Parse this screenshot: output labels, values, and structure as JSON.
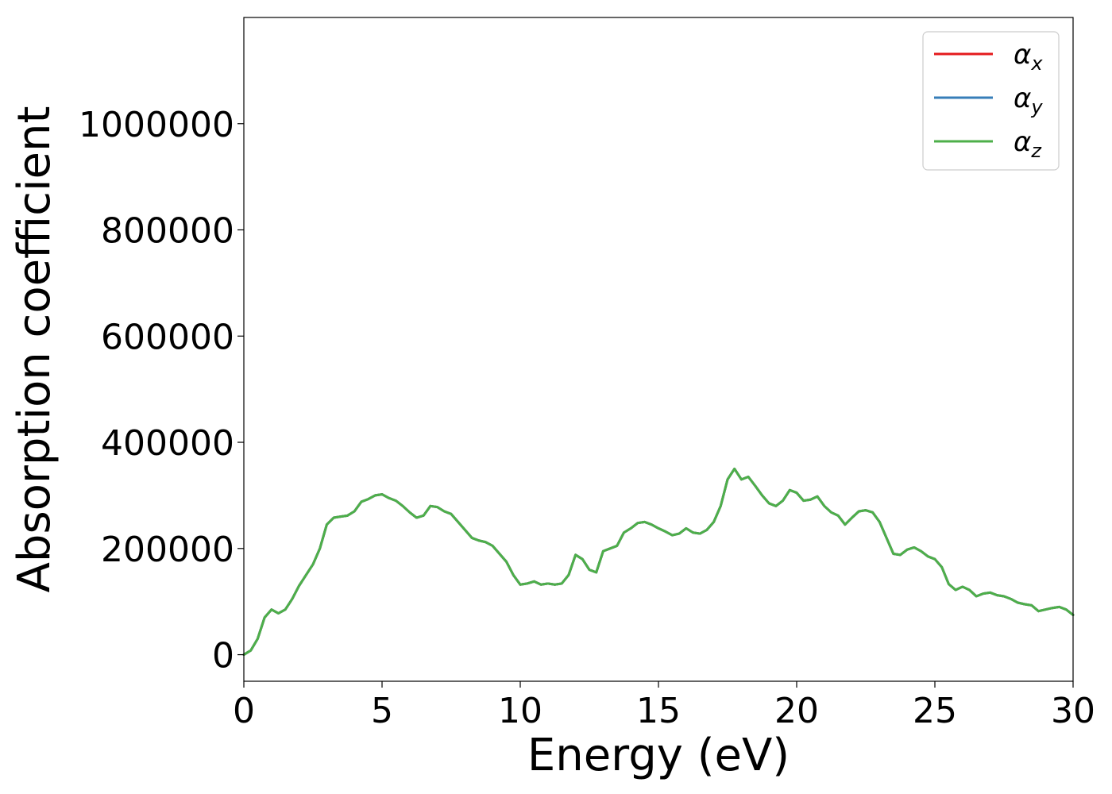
{
  "chart_data": {
    "type": "line",
    "title": "",
    "xlabel": "Energy (eV)",
    "ylabel": "Absorption coefficient",
    "xlim": [
      0,
      30
    ],
    "ylim": [
      -50000,
      1200000
    ],
    "xticks": [
      0,
      5,
      10,
      15,
      20,
      25,
      30
    ],
    "xtick_labels": [
      "0",
      "5",
      "10",
      "15",
      "20",
      "25",
      "30"
    ],
    "yticks": [
      0,
      200000,
      400000,
      600000,
      800000,
      1000000
    ],
    "ytick_labels": [
      "0",
      "200000",
      "400000",
      "600000",
      "800000",
      "1000000"
    ],
    "grid": false,
    "legend_position": "top-right",
    "x": [
      0,
      0.25,
      0.5,
      0.75,
      1.0,
      1.25,
      1.5,
      1.75,
      2.0,
      2.25,
      2.5,
      2.75,
      3.0,
      3.25,
      3.5,
      3.75,
      4.0,
      4.25,
      4.5,
      4.75,
      5.0,
      5.25,
      5.5,
      5.75,
      6.0,
      6.25,
      6.5,
      6.75,
      7.0,
      7.25,
      7.5,
      7.75,
      8.0,
      8.25,
      8.5,
      8.75,
      9.0,
      9.25,
      9.5,
      9.75,
      10.0,
      10.25,
      10.5,
      10.75,
      11.0,
      11.25,
      11.5,
      11.75,
      12.0,
      12.25,
      12.5,
      12.75,
      13.0,
      13.25,
      13.5,
      13.75,
      14.0,
      14.25,
      14.5,
      14.75,
      15.0,
      15.25,
      15.5,
      15.75,
      16.0,
      16.25,
      16.5,
      16.75,
      17.0,
      17.25,
      17.5,
      17.75,
      18.0,
      18.25,
      18.5,
      18.75,
      19.0,
      19.25,
      19.5,
      19.75,
      20.0,
      20.25,
      20.5,
      20.75,
      21.0,
      21.25,
      21.5,
      21.75,
      22.0,
      22.25,
      22.5,
      22.75,
      23.0,
      23.25,
      23.5,
      23.75,
      24.0,
      24.25,
      24.5,
      24.75,
      25.0,
      25.25,
      25.5,
      25.75,
      26.0,
      26.25,
      26.5,
      26.75,
      27.0,
      27.25,
      27.5,
      27.75,
      28.0,
      28.25,
      28.5,
      28.75,
      29.0,
      29.25,
      29.5,
      29.75,
      30.0
    ],
    "series": [
      {
        "name": "α_x",
        "name_main": "α",
        "name_sub": "x",
        "color": "#e41a1c",
        "values": [
          0,
          8000,
          30000,
          70000,
          85000,
          78000,
          85000,
          105000,
          130000,
          150000,
          170000,
          200000,
          245000,
          258000,
          260000,
          262000,
          270000,
          288000,
          293000,
          300000,
          302000,
          295000,
          290000,
          280000,
          268000,
          258000,
          262000,
          280000,
          278000,
          270000,
          265000,
          250000,
          235000,
          220000,
          215000,
          212000,
          205000,
          190000,
          175000,
          150000,
          132000,
          134000,
          138000,
          132000,
          134000,
          132000,
          134000,
          150000,
          188000,
          180000,
          160000,
          155000,
          195000,
          200000,
          205000,
          230000,
          238000,
          248000,
          250000,
          245000,
          238000,
          232000,
          225000,
          228000,
          238000,
          230000,
          228000,
          235000,
          250000,
          280000,
          330000,
          350000,
          330000,
          335000,
          318000,
          300000,
          285000,
          280000,
          290000,
          310000,
          305000,
          290000,
          292000,
          298000,
          280000,
          268000,
          262000,
          245000,
          258000,
          270000,
          272000,
          268000,
          250000,
          220000,
          190000,
          188000,
          198000,
          202000,
          195000,
          185000,
          180000,
          165000,
          133000,
          122000,
          128000,
          122000,
          110000,
          115000,
          117000,
          112000,
          110000,
          105000,
          98000,
          95000,
          93000,
          82000,
          85000,
          88000,
          90000,
          85000,
          75000
        ]
      },
      {
        "name": "α_y",
        "name_main": "α",
        "name_sub": "y",
        "color": "#377eb8",
        "values": [
          0,
          8000,
          30000,
          70000,
          85000,
          78000,
          85000,
          105000,
          130000,
          150000,
          170000,
          200000,
          245000,
          258000,
          260000,
          262000,
          270000,
          288000,
          293000,
          300000,
          302000,
          295000,
          290000,
          280000,
          268000,
          258000,
          262000,
          280000,
          278000,
          270000,
          265000,
          250000,
          235000,
          220000,
          215000,
          212000,
          205000,
          190000,
          175000,
          150000,
          132000,
          134000,
          138000,
          132000,
          134000,
          132000,
          134000,
          150000,
          188000,
          180000,
          160000,
          155000,
          195000,
          200000,
          205000,
          230000,
          238000,
          248000,
          250000,
          245000,
          238000,
          232000,
          225000,
          228000,
          238000,
          230000,
          228000,
          235000,
          250000,
          280000,
          330000,
          350000,
          330000,
          335000,
          318000,
          300000,
          285000,
          280000,
          290000,
          310000,
          305000,
          290000,
          292000,
          298000,
          280000,
          268000,
          262000,
          245000,
          258000,
          270000,
          272000,
          268000,
          250000,
          220000,
          190000,
          188000,
          198000,
          202000,
          195000,
          185000,
          180000,
          165000,
          133000,
          122000,
          128000,
          122000,
          110000,
          115000,
          117000,
          112000,
          110000,
          105000,
          98000,
          95000,
          93000,
          82000,
          85000,
          88000,
          90000,
          85000,
          75000
        ]
      },
      {
        "name": "α_z",
        "name_main": "α",
        "name_sub": "z",
        "color": "#4daf4a",
        "values": [
          0,
          8000,
          30000,
          70000,
          85000,
          78000,
          85000,
          105000,
          130000,
          150000,
          170000,
          200000,
          245000,
          258000,
          260000,
          262000,
          270000,
          288000,
          293000,
          300000,
          302000,
          295000,
          290000,
          280000,
          268000,
          258000,
          262000,
          280000,
          278000,
          270000,
          265000,
          250000,
          235000,
          220000,
          215000,
          212000,
          205000,
          190000,
          175000,
          150000,
          132000,
          134000,
          138000,
          132000,
          134000,
          132000,
          134000,
          150000,
          188000,
          180000,
          160000,
          155000,
          195000,
          200000,
          205000,
          230000,
          238000,
          248000,
          250000,
          245000,
          238000,
          232000,
          225000,
          228000,
          238000,
          230000,
          228000,
          235000,
          250000,
          280000,
          330000,
          350000,
          330000,
          335000,
          318000,
          300000,
          285000,
          280000,
          290000,
          310000,
          305000,
          290000,
          292000,
          298000,
          280000,
          268000,
          262000,
          245000,
          258000,
          270000,
          272000,
          268000,
          250000,
          220000,
          190000,
          188000,
          198000,
          202000,
          195000,
          185000,
          180000,
          165000,
          133000,
          122000,
          128000,
          122000,
          110000,
          115000,
          117000,
          112000,
          110000,
          105000,
          98000,
          95000,
          93000,
          82000,
          85000,
          88000,
          90000,
          85000,
          75000
        ]
      }
    ]
  }
}
